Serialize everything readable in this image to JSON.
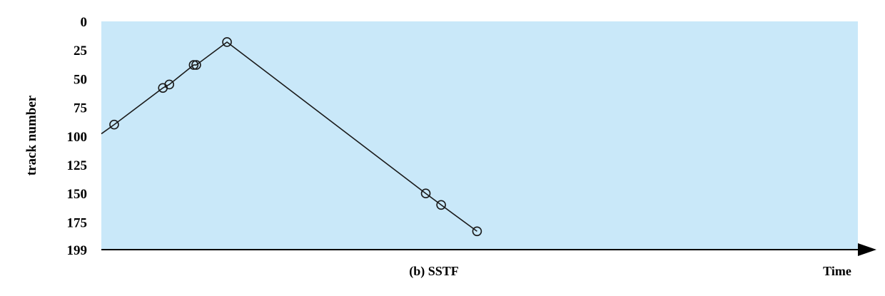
{
  "chart_data": {
    "type": "line",
    "title": "(b) SSTF",
    "xlabel": "Time",
    "ylabel": "track number",
    "y_inverted": true,
    "ylim": [
      0,
      199
    ],
    "yticks": [
      "0",
      "25",
      "50",
      "75",
      "100",
      "125",
      "150",
      "175",
      "199"
    ],
    "ytick_values": [
      0,
      25,
      50,
      75,
      100,
      125,
      150,
      175,
      199
    ],
    "grid": false,
    "plot_background": "#c9e8f9",
    "line_color": "#1a1a1a",
    "marker": "open-circle",
    "series": [
      {
        "x": [
          0,
          1.0,
          4.8,
          5.3,
          7.2,
          7.4,
          9.8,
          25.3,
          26.5,
          29.3
        ],
        "y": [
          98,
          90,
          58,
          55,
          38,
          38,
          18,
          150,
          160,
          183
        ],
        "marker_points": [
          1,
          2,
          3,
          4,
          5,
          6,
          7,
          8,
          9
        ]
      }
    ],
    "xlim": [
      0,
      59
    ]
  }
}
